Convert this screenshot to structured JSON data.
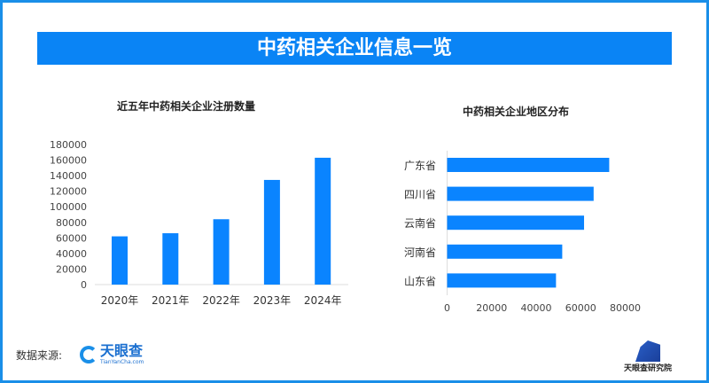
{
  "title": "中药相关企业信息一览",
  "chart_data": [
    {
      "type": "bar",
      "title": "近五年中药相关企业注册数量",
      "categories": [
        "2020年",
        "2021年",
        "2022年",
        "2023年",
        "2024年"
      ],
      "values": [
        62000,
        66000,
        84000,
        134500,
        163000
      ],
      "ylim": [
        0,
        180000
      ],
      "yticks": [
        0,
        20000,
        40000,
        60000,
        80000,
        100000,
        120000,
        140000,
        160000,
        180000
      ],
      "color": "#0a84ff",
      "grid": false
    },
    {
      "type": "bar",
      "orientation": "horizontal",
      "title": "中药相关企业地区分布",
      "categories": [
        "广东省",
        "四川省",
        "云南省",
        "河南省",
        "山东省"
      ],
      "values": [
        72800,
        65800,
        61500,
        51700,
        48900
      ],
      "xlim": [
        0,
        80000
      ],
      "xticks": [
        0,
        20000,
        40000,
        60000,
        80000
      ],
      "color": "#0a84ff",
      "grid": false
    }
  ],
  "footer": {
    "source_label": "数据来源:",
    "source_logo": "天眼查",
    "source_logo_sub": "TianYanCha.com",
    "institute": "天眼查研究院"
  }
}
